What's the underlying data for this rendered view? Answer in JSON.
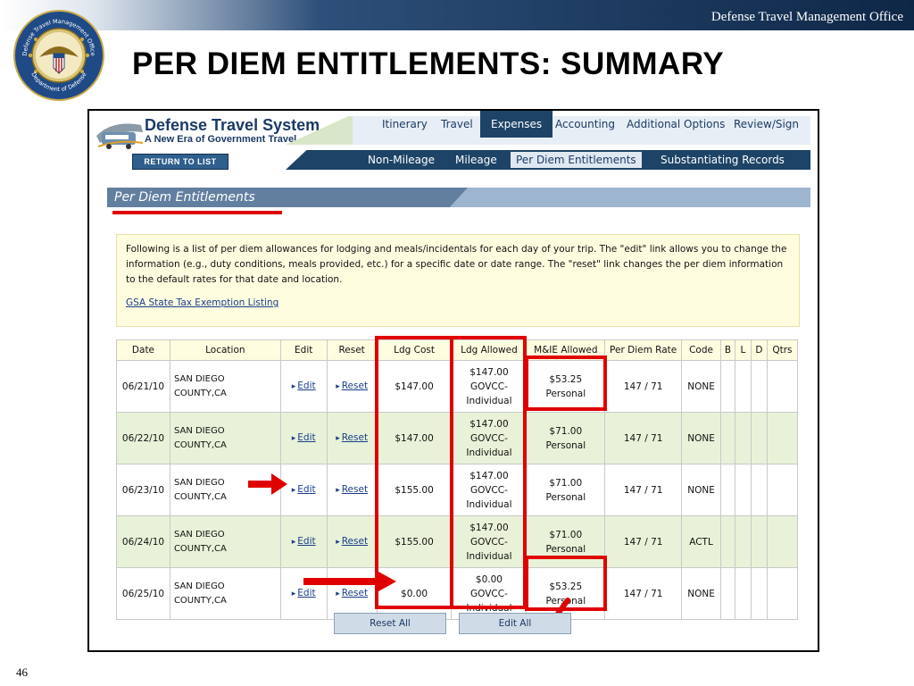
{
  "slide": {
    "org": "Defense Travel Management Office",
    "title": "PER DIEM ENTITLEMENTS: SUMMARY",
    "page_number": "46"
  },
  "seal": {
    "text_top": "Defense Travel Management Office",
    "text_bottom": "Department of Defense"
  },
  "app": {
    "name": "Defense Travel System",
    "tagline": "A New Era of Government Travel",
    "return_label": "RETURN TO LIST"
  },
  "tabs": [
    "Itinerary",
    "Travel",
    "Expenses",
    "Accounting",
    "Additional Options",
    "Review/Sign"
  ],
  "subtabs": [
    "Non-Mileage",
    "Mileage",
    "Per Diem Entitlements",
    "Substantiating Records"
  ],
  "section": {
    "title": "Per Diem Entitlements",
    "info": "Following is a list of per diem allowances for lodging and meals/incidentals for each day of your trip. The \"edit\" link allows you to change the information (e.g., duty conditions, meals provided, etc.) for a specific date or date range. The \"reset\" link changes the per diem information to the default rates for that date and location.",
    "link": "GSA State Tax Exemption Listing"
  },
  "table": {
    "headers": [
      "Date",
      "Location",
      "Edit",
      "Reset",
      "Ldg Cost",
      "Ldg Allowed",
      "M&IE Allowed",
      "Per Diem Rate",
      "Code",
      "B",
      "L",
      "D",
      "Qtrs"
    ],
    "rows": [
      {
        "date": "06/21/10",
        "loc1": "SAN DIEGO",
        "loc2": "COUNTY,CA",
        "edit": "Edit",
        "reset": "Reset",
        "ldg_cost": "$147.00",
        "la1": "$147.00",
        "la2": "GOVCC-",
        "la3": "Individual",
        "mie1": "$53.25",
        "mie2": "Personal",
        "rate": "147 / 71",
        "code": "NONE"
      },
      {
        "date": "06/22/10",
        "loc1": "SAN DIEGO",
        "loc2": "COUNTY,CA",
        "edit": "Edit",
        "reset": "Reset",
        "ldg_cost": "$147.00",
        "la1": "$147.00",
        "la2": "GOVCC-",
        "la3": "Individual",
        "mie1": "$71.00",
        "mie2": "Personal",
        "rate": "147 / 71",
        "code": "NONE"
      },
      {
        "date": "06/23/10",
        "loc1": "SAN DIEGO",
        "loc2": "COUNTY,CA",
        "edit": "Edit",
        "reset": "Reset",
        "ldg_cost": "$155.00",
        "la1": "$147.00",
        "la2": "GOVCC-",
        "la3": "Individual",
        "mie1": "$71.00",
        "mie2": "Personal",
        "rate": "147 / 71",
        "code": "NONE"
      },
      {
        "date": "06/24/10",
        "loc1": "SAN DIEGO",
        "loc2": "COUNTY,CA",
        "edit": "Edit",
        "reset": "Reset",
        "ldg_cost": "$155.00",
        "la1": "$147.00",
        "la2": "GOVCC-",
        "la3": "Individual",
        "mie1": "$71.00",
        "mie2": "Personal",
        "rate": "147 / 71",
        "code": "ACTL"
      },
      {
        "date": "06/25/10",
        "loc1": "SAN DIEGO",
        "loc2": "COUNTY,CA",
        "edit": "Edit",
        "reset": "Reset",
        "ldg_cost": "$0.00",
        "la1": "$0.00",
        "la2": "GOVCC-",
        "la3": "Individual",
        "mie1": "$53.25",
        "mie2": "Personal",
        "rate": "147 / 71",
        "code": "NONE"
      }
    ]
  },
  "buttons": {
    "reset_all": "Reset All",
    "edit_all": "Edit All"
  },
  "colors": {
    "accent_red": "#e00000",
    "nav_blue": "#1d4366",
    "row_alt_green": "#e8f2d8",
    "info_yellow": "#fffde0"
  }
}
